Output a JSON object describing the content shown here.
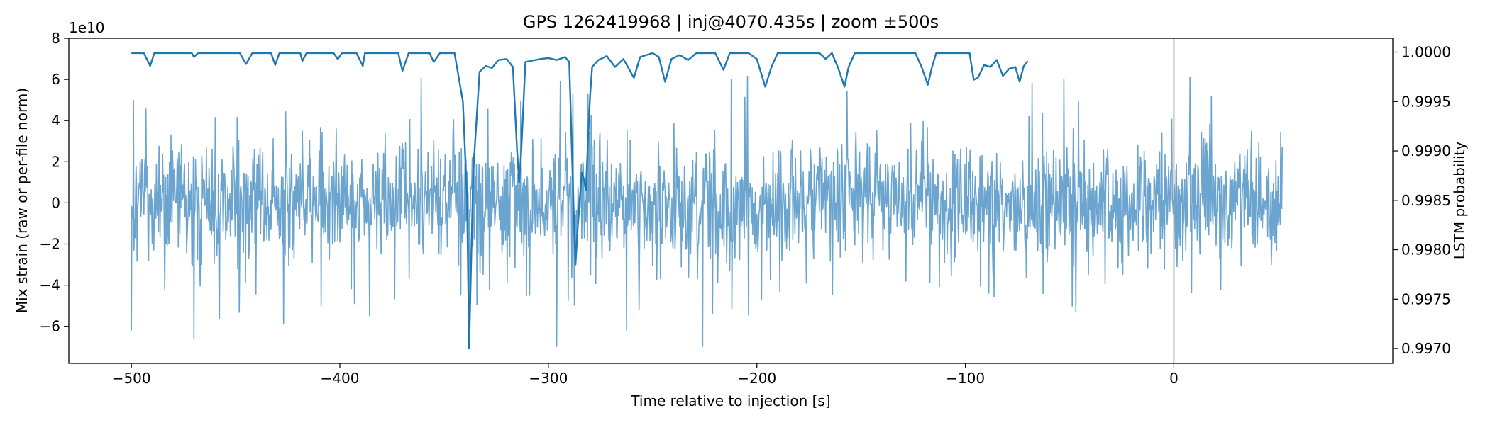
{
  "chart_data": {
    "type": "line",
    "title": "GPS 1262419968 | inj@4070.435s | zoom ±500s",
    "xlabel": "Time relative to injection [s]",
    "ylabel": "Mix strain (raw or per-file norm)",
    "y2label": "LSTM probability",
    "y_offset_text": "1e10",
    "xlim": [
      -530,
      105
    ],
    "ylim": [
      -7.8,
      8.0
    ],
    "y2lim": [
      0.99685,
      1.00014
    ],
    "x_ticks": [
      -500,
      -400,
      -300,
      -200,
      -100,
      0
    ],
    "x_tick_labels": [
      "−500",
      "−400",
      "−300",
      "−200",
      "−100",
      "0"
    ],
    "y_ticks": [
      -6,
      -4,
      -2,
      0,
      2,
      4,
      6,
      8
    ],
    "y_tick_labels": [
      "−6",
      "−4",
      "−2",
      "0",
      "2",
      "4",
      "6",
      "8"
    ],
    "y2_ticks": [
      0.997,
      0.9975,
      0.998,
      0.9985,
      0.999,
      0.9995,
      1.0
    ],
    "y2_tick_labels": [
      "0.9970",
      "0.9975",
      "0.9980",
      "0.9985",
      "0.9990",
      "0.9995",
      "1.0000"
    ],
    "injection_marker_x": 0,
    "series": [
      {
        "name": "Mix strain",
        "axis": "left",
        "color": "#5b9bca",
        "description": "dense noisy strain trace, roughly ±3 typical, spikes to ±6.5",
        "x_range": [
          -500,
          52
        ],
        "notable_extremes": [
          [
            -500,
            -6.2
          ],
          [
            -499,
            5.0
          ],
          [
            -470,
            -6.6
          ],
          [
            -338,
            -7.0
          ],
          [
            -296,
            -7.0
          ],
          [
            -226,
            -7.0
          ]
        ]
      },
      {
        "name": "LSTM probability",
        "axis": "right",
        "color": "#1f77b4",
        "points": [
          [
            -500,
            0.99999
          ],
          [
            -494,
            0.99999
          ],
          [
            -491,
            0.99986
          ],
          [
            -489,
            0.99999
          ],
          [
            -471,
            0.99999
          ],
          [
            -470,
            0.99995
          ],
          [
            -468,
            0.99999
          ],
          [
            -448,
            0.99999
          ],
          [
            -445,
            0.99988
          ],
          [
            -442,
            0.99999
          ],
          [
            -433,
            0.99999
          ],
          [
            -431,
            0.99987
          ],
          [
            -429,
            0.99999
          ],
          [
            -419,
            0.99999
          ],
          [
            -418,
            0.99991
          ],
          [
            -416,
            0.99999
          ],
          [
            -403,
            0.99999
          ],
          [
            -401,
            0.99993
          ],
          [
            -399,
            0.99999
          ],
          [
            -392,
            0.99999
          ],
          [
            -389,
            0.99986
          ],
          [
            -388,
            0.99999
          ],
          [
            -372,
            0.99999
          ],
          [
            -370,
            0.99981
          ],
          [
            -367,
            0.99999
          ],
          [
            -357,
            0.99999
          ],
          [
            -355,
            0.9999
          ],
          [
            -352,
            0.99999
          ],
          [
            -345,
            0.99999
          ],
          [
            -341,
            0.9995
          ],
          [
            -339,
            0.9985
          ],
          [
            -338,
            0.997
          ],
          [
            -337,
            0.9979
          ],
          [
            -336,
            0.9988
          ],
          [
            -333,
            0.9998
          ],
          [
            -330,
            0.99986
          ],
          [
            -327,
            0.99984
          ],
          [
            -324,
            0.99992
          ],
          [
            -320,
            0.99993
          ],
          [
            -317,
            0.99985
          ],
          [
            -315,
            0.999
          ],
          [
            -314,
            0.99868
          ],
          [
            -313,
            0.999
          ],
          [
            -311,
            0.9999
          ],
          [
            -304,
            0.99993
          ],
          [
            -300,
            0.99994
          ],
          [
            -296,
            0.99992
          ],
          [
            -292,
            0.99995
          ],
          [
            -290,
            0.9999
          ],
          [
            -288,
            0.9985
          ],
          [
            -287,
            0.99785
          ],
          [
            -286,
            0.9982
          ],
          [
            -284,
            0.99878
          ],
          [
            -283,
            0.99872
          ],
          [
            -282,
            0.9986
          ],
          [
            -281,
            0.9991
          ],
          [
            -280,
            0.99955
          ],
          [
            -279,
            0.99985
          ],
          [
            -276,
            0.99992
          ],
          [
            -272,
            0.99996
          ],
          [
            -268,
            0.99985
          ],
          [
            -264,
            0.99993
          ],
          [
            -259,
            0.99974
          ],
          [
            -256,
            0.99995
          ],
          [
            -250,
            0.99999
          ],
          [
            -247,
            0.99995
          ],
          [
            -244,
            0.9997
          ],
          [
            -241,
            0.99993
          ],
          [
            -237,
            0.99997
          ],
          [
            -233,
            0.99992
          ],
          [
            -229,
            0.99999
          ],
          [
            -220,
            0.99999
          ],
          [
            -216,
            0.99982
          ],
          [
            -213,
            0.99999
          ],
          [
            -204,
            0.99999
          ],
          [
            -200,
            0.99993
          ],
          [
            -196,
            0.99965
          ],
          [
            -193,
            0.99985
          ],
          [
            -190,
            0.99999
          ],
          [
            -170,
            0.99999
          ],
          [
            -167,
            0.99993
          ],
          [
            -164,
            0.99999
          ],
          [
            -161,
            0.99984
          ],
          [
            -158,
            0.99965
          ],
          [
            -156,
            0.99985
          ],
          [
            -153,
            0.99999
          ],
          [
            -124,
            0.99999
          ],
          [
            -121,
            0.99985
          ],
          [
            -118,
            0.99967
          ],
          [
            -116,
            0.99985
          ],
          [
            -114,
            0.99999
          ],
          [
            -98,
            0.99999
          ],
          [
            -96,
            0.99972
          ],
          [
            -94,
            0.99974
          ],
          [
            -91,
            0.99987
          ],
          [
            -88,
            0.99985
          ],
          [
            -85,
            0.99992
          ],
          [
            -82,
            0.99976
          ],
          [
            -79,
            0.99983
          ],
          [
            -76,
            0.99985
          ],
          [
            -74,
            0.9997
          ],
          [
            -72,
            0.99986
          ],
          [
            -70,
            0.99991
          ]
        ]
      }
    ]
  }
}
